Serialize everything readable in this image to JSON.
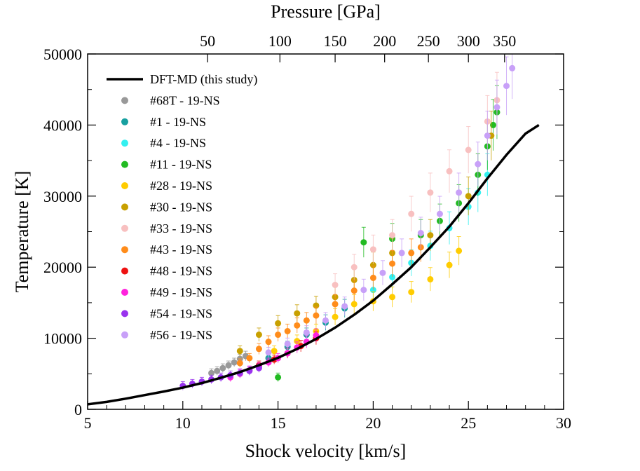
{
  "chart_data": {
    "type": "scatter",
    "xlabel": "Shock velocity [km/s]",
    "ylabel": "Temperature [K]",
    "x2label": "Pressure [GPa]",
    "xlim": [
      5,
      30
    ],
    "ylim": [
      0,
      50000
    ],
    "xticks": [
      "5",
      "10",
      "15",
      "20",
      "25",
      "30"
    ],
    "yticks": [
      "0",
      "10000",
      "20000",
      "30000",
      "40000",
      "50000"
    ],
    "x2ticks": [
      {
        "label": "50",
        "at_velocity": 11.3
      },
      {
        "label": "100",
        "at_velocity": 15.1
      },
      {
        "label": "150",
        "at_velocity": 18.0
      },
      {
        "label": "200",
        "at_velocity": 20.6
      },
      {
        "label": "250",
        "at_velocity": 22.9
      },
      {
        "label": "300",
        "at_velocity": 25.0
      },
      {
        "label": "350",
        "at_velocity": 26.9
      }
    ],
    "legend_position": "top-left",
    "line": {
      "name": "DFT-MD (this study)",
      "color": "#000000",
      "x": [
        5,
        6,
        7,
        8,
        9,
        10,
        11,
        12,
        13,
        14,
        15,
        16,
        17,
        18,
        19,
        20,
        21,
        22,
        23,
        24,
        25,
        26,
        27,
        28,
        28.7
      ],
      "y": [
        700,
        1050,
        1500,
        2000,
        2500,
        3050,
        3700,
        4450,
        5250,
        6200,
        7250,
        8500,
        9900,
        11500,
        13300,
        15300,
        17600,
        20000,
        22800,
        25700,
        29000,
        32500,
        35800,
        38800,
        40000
      ]
    },
    "series": [
      {
        "name": "#68T - 19-NS",
        "color": "#999999",
        "x": [
          11.5,
          11.8,
          12.1,
          12.4,
          12.7,
          13.0,
          13.3
        ],
        "y": [
          5100,
          5400,
          5800,
          6200,
          6600,
          7100,
          7500
        ]
      },
      {
        "name": "#1 - 19-NS",
        "color": "#17a0a0",
        "x": [
          14.5,
          15.5,
          16.5,
          17.5,
          18.5
        ],
        "y": [
          7200,
          8800,
          10500,
          12200,
          14200
        ]
      },
      {
        "name": "#4 - 19-NS",
        "color": "#33f0f0",
        "x": [
          20.0,
          21.0,
          22.0,
          23.0,
          24.0,
          25.0,
          25.5,
          26.0
        ],
        "y": [
          16800,
          18600,
          20600,
          23000,
          25500,
          28500,
          30500,
          33000
        ]
      },
      {
        "name": "#11 - 19-NS",
        "color": "#22bb22",
        "x": [
          15.0,
          19.5,
          21.0,
          22.5,
          23.5,
          24.5,
          25.5,
          26.0,
          26.3,
          26.5
        ],
        "y": [
          4500,
          23500,
          24000,
          24500,
          26500,
          29000,
          33000,
          37000,
          40000,
          41800
        ]
      },
      {
        "name": "#28 - 19-NS",
        "color": "#ffcc00",
        "x": [
          14.8,
          16.0,
          17.0,
          18.0,
          19.0,
          20.0,
          21.0,
          22.0,
          23.0,
          24.0,
          24.5
        ],
        "y": [
          8200,
          9600,
          11000,
          13000,
          14800,
          15200,
          15800,
          16500,
          18300,
          20300,
          22300
        ]
      },
      {
        "name": "#30 - 19-NS",
        "color": "#c8a000",
        "x": [
          13.0,
          14.0,
          15.0,
          16.0,
          17.0,
          18.0,
          19.0,
          20.0,
          21.0,
          23.0,
          25.0,
          26.2
        ],
        "y": [
          8200,
          10500,
          12100,
          13500,
          14600,
          15800,
          18200,
          20300,
          22000,
          24500,
          30000,
          38500
        ]
      },
      {
        "name": "#33 - 19-NS",
        "color": "#f8c0c0",
        "x": [
          18.0,
          19.0,
          20.0,
          21.0,
          22.0,
          23.0,
          24.0,
          25.0,
          26.0,
          26.5
        ],
        "y": [
          17500,
          20000,
          22500,
          24500,
          27500,
          30500,
          33500,
          36500,
          40500,
          43500
        ]
      },
      {
        "name": "#43 - 19-NS",
        "color": "#ff8c1a",
        "x": [
          13.0,
          13.5,
          14.0,
          14.5,
          15.0,
          15.5,
          16.0,
          16.5,
          17.0,
          18.0,
          19.0,
          20.0,
          21.0,
          22.0,
          22.5
        ],
        "y": [
          6500,
          7200,
          8500,
          9500,
          10500,
          11000,
          11800,
          12500,
          13200,
          14800,
          16700,
          18500,
          20500,
          22000,
          22800
        ]
      },
      {
        "name": "#48 - 19-NS",
        "color": "#ee1111",
        "x": [
          14.0,
          14.8,
          15.5,
          16.2,
          17.0
        ],
        "y": [
          6200,
          7000,
          7900,
          8900,
          10000
        ]
      },
      {
        "name": "#49 - 19-NS",
        "color": "#ff22dd",
        "x": [
          12.5,
          13.0,
          13.5,
          14.0,
          14.5,
          15.0,
          15.5,
          16.0,
          16.5,
          17.0
        ],
        "y": [
          4500,
          5000,
          5500,
          6000,
          6600,
          7200,
          7900,
          8700,
          9500,
          10400
        ]
      },
      {
        "name": "#54 - 19-NS",
        "color": "#9933ee",
        "x": [
          10.0,
          10.5,
          11.0,
          11.5,
          12.0,
          12.5,
          13.0,
          13.5,
          14.0
        ],
        "y": [
          3300,
          3600,
          3900,
          4200,
          4500,
          4800,
          5100,
          5400,
          5800
        ]
      },
      {
        "name": "#56 - 19-NS",
        "color": "#c8a0f8",
        "x": [
          14.5,
          15.5,
          16.5,
          17.5,
          18.5,
          19.5,
          20.5,
          21.5,
          22.5,
          23.5,
          24.5,
          25.5,
          26.0,
          26.5,
          27.0,
          27.3
        ],
        "y": [
          8000,
          9200,
          10800,
          12500,
          14500,
          16800,
          19200,
          22000,
          24800,
          27500,
          30500,
          34500,
          38500,
          42500,
          45500,
          48000
        ]
      }
    ]
  }
}
